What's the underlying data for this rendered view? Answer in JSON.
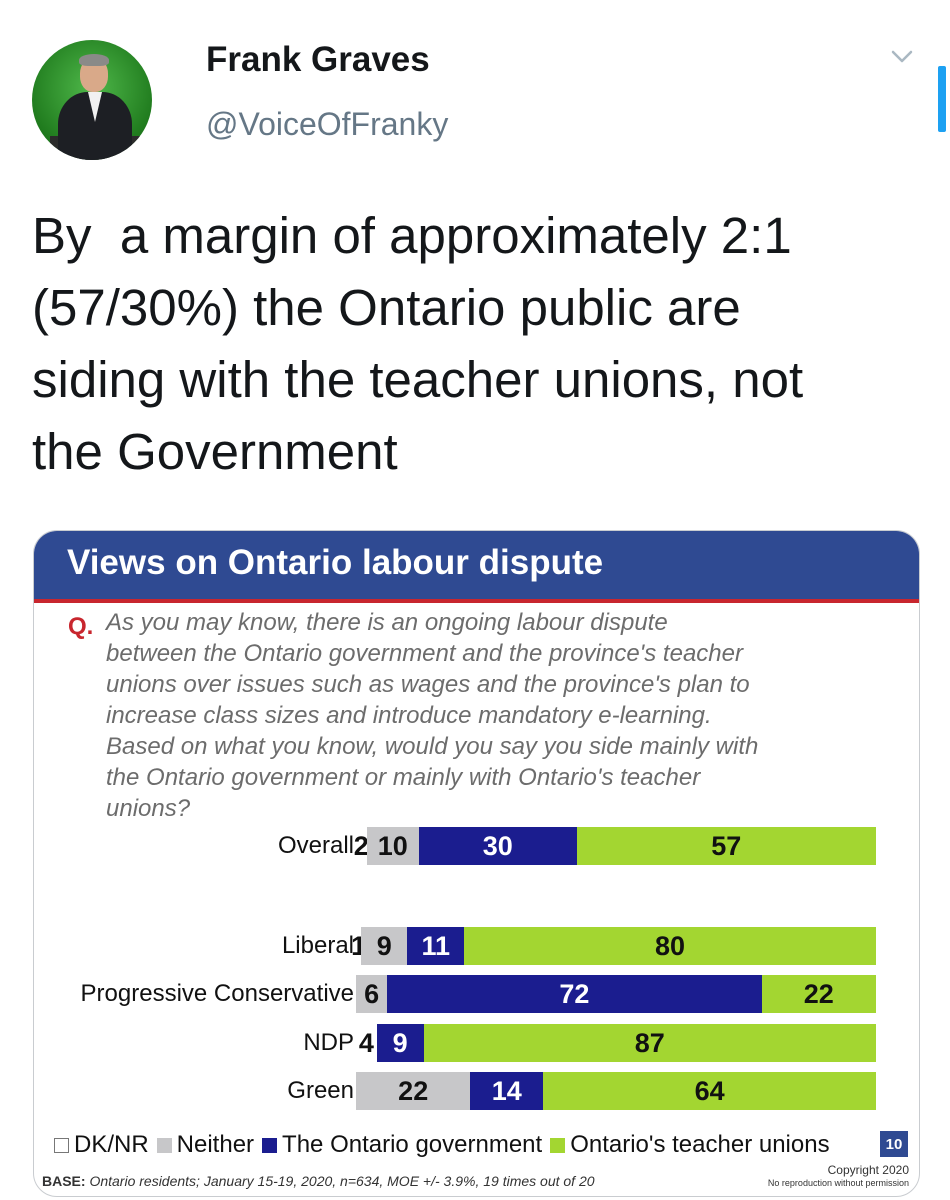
{
  "tweet": {
    "author_name": "Frank Graves",
    "author_handle": "@VoiceOfFranky",
    "text": "By  a margin of approximately 2:1\n(57/30%) the Ontario public are\nsiding with the teacher unions, not\nthe Government"
  },
  "icons": {
    "avatar": "avatar-photo",
    "menu": "chevron-down-icon"
  },
  "card": {
    "title": "Views on Ontario labour dispute",
    "question_label": "Q.",
    "question": "As you may know, there is an ongoing labour dispute\nbetween the Ontario government and the province's teacher\nunions over issues such as wages and the province's plan to\nincrease class sizes and introduce mandatory e-learning.\nBased on what you know, would you say you side mainly with\nthe Ontario government or mainly with Ontario's teacher\nunions?",
    "page_number": "10",
    "base_note_label": "BASE:",
    "base_note": " Ontario residents; January 15-19, 2020, n=634, MOE +/- 3.9%, 19 times out of 20",
    "copyright": "Copyright 2020",
    "copyright_sub": "No reproduction without permission"
  },
  "colors": {
    "dk_nr": "#ffffff",
    "neither": "#c7c7c9",
    "government": "#1b1d8f",
    "unions": "#a3d631",
    "header": "#2f4a92",
    "accent_red": "#c8262e"
  },
  "chart_data": {
    "type": "bar",
    "orientation": "horizontal-stacked-100",
    "categories": [
      "Overall",
      "Liberal",
      "Progressive Conservative",
      "NDP",
      "Green"
    ],
    "series": [
      {
        "name": "DK/NR",
        "values": [
          2,
          1,
          0,
          4,
          0
        ]
      },
      {
        "name": "Neither",
        "values": [
          10,
          9,
          6,
          0,
          22
        ]
      },
      {
        "name": "The Ontario government",
        "values": [
          30,
          11,
          72,
          9,
          14
        ]
      },
      {
        "name": "Ontario's teacher unions",
        "values": [
          57,
          80,
          22,
          87,
          64
        ]
      }
    ],
    "xlim": [
      0,
      100
    ],
    "legend": "bottom"
  }
}
